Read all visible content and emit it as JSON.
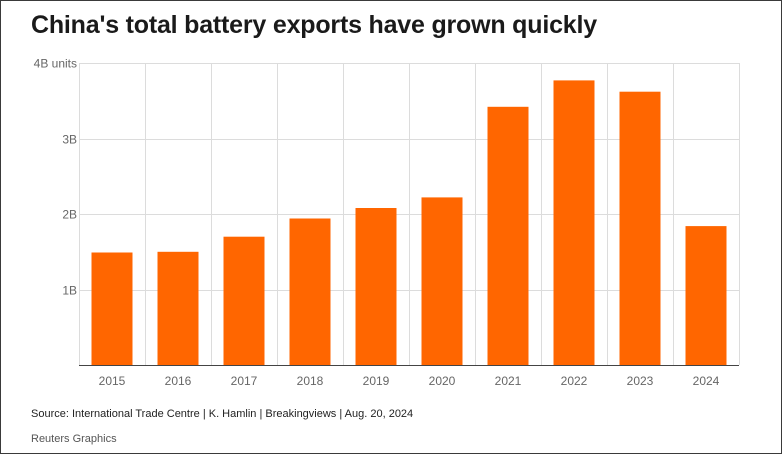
{
  "chart_data": {
    "type": "bar",
    "title": "China's total battery exports have grown quickly",
    "xlabel": "",
    "ylabel": "",
    "y_unit_label": "4B units",
    "categories": [
      "2015",
      "2016",
      "2017",
      "2018",
      "2019",
      "2020",
      "2021",
      "2022",
      "2023",
      "2024"
    ],
    "values": [
      1.49,
      1.5,
      1.7,
      1.94,
      2.08,
      2.22,
      3.42,
      3.77,
      3.62,
      1.84
    ],
    "ylim": [
      0,
      4
    ],
    "y_ticks": [
      {
        "value": 1,
        "label": "1B"
      },
      {
        "value": 2,
        "label": "2B"
      },
      {
        "value": 3,
        "label": "3B"
      },
      {
        "value": 4,
        "label": "4B units"
      }
    ],
    "bar_color": "#ff6600",
    "grid": true
  },
  "footer": {
    "source": "Source: International Trade Centre | K. Hamlin | Breakingviews | Aug. 20, 2024",
    "credit": "Reuters Graphics"
  }
}
